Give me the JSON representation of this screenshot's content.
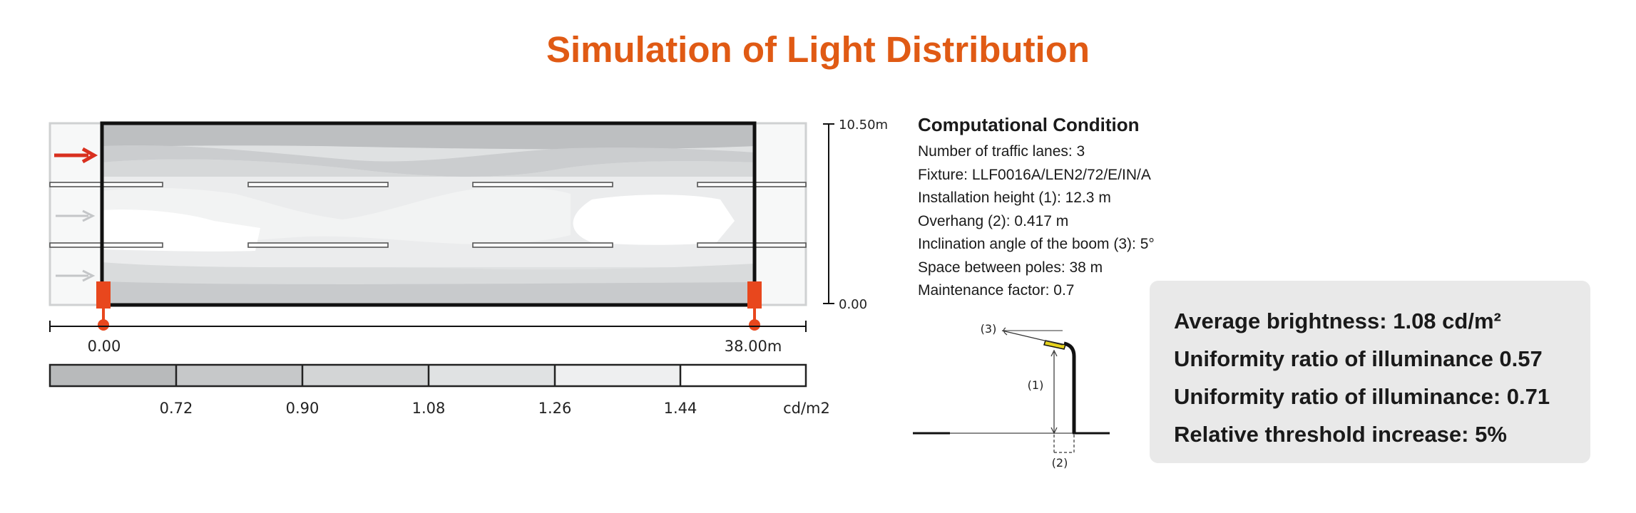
{
  "title": "Simulation of Light Distribution",
  "colors": {
    "accent": "#e05a14",
    "pole": "#e8471d",
    "arrow": "#d9301f"
  },
  "diagram": {
    "height_top_label": "10.50m",
    "height_bottom_label": "0.00",
    "start_label": "0.00",
    "end_label": "38.00m",
    "scale_values": [
      "0.72",
      "0.90",
      "1.08",
      "1.26",
      "1.44"
    ],
    "scale_unit": "cd/m2",
    "scale_colors": [
      "#b8babb",
      "#c6c8c9",
      "#d3d5d6",
      "#e0e2e3",
      "#eeeff0",
      "#ffffff"
    ]
  },
  "conditions": {
    "title": "Computational Condition",
    "items": [
      "Number of traffic lanes: 3",
      "Fixture: LLF0016A/LEN2/72/E/IN/A",
      "Installation height (1): 12.3 m",
      "Overhang (2): 0.417 m",
      "Inclination angle of the boom (3): 5°",
      "Space between poles: 38 m",
      "Maintenance factor: 0.7"
    ]
  },
  "pole_labels": {
    "l1": "(1)",
    "l2": "(2)",
    "l3": "(3)"
  },
  "results": [
    "Average brightness: 1.08 cd/m²",
    "Uniformity ratio of illuminance 0.57",
    "Uniformity ratio of illuminance: 0.71",
    "Relative threshold increase: 5%"
  ]
}
